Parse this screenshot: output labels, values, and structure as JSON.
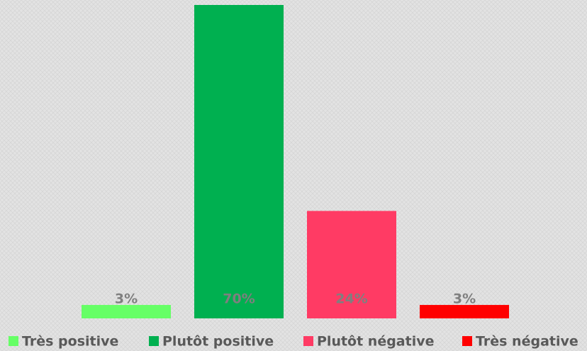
{
  "chart_data": {
    "type": "bar",
    "categories": [
      "Très positive",
      "Plutôt positive",
      "Plutôt négative",
      "Très négative"
    ],
    "values": [
      3,
      70,
      24,
      3
    ],
    "value_labels": [
      "3%",
      "70%",
      "24%",
      "3%"
    ],
    "colors": [
      "#66ff66",
      "#00b050",
      "#ff3b64",
      "#ff0000"
    ],
    "legend": "bottom"
  }
}
